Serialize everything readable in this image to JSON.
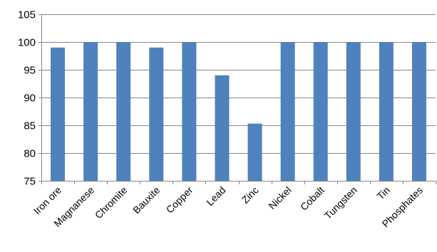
{
  "chart_data": {
    "type": "bar",
    "title": "",
    "xlabel": "",
    "ylabel": "",
    "categories": [
      "Iron ore",
      "Magnanese",
      "Chromite",
      "Bauxite",
      "Copper",
      "Lead",
      "Zinc",
      "Nickel",
      "Cobalt",
      "Tungsten",
      "Tin",
      "Phosphates"
    ],
    "values": [
      99,
      100,
      100,
      99,
      100,
      94,
      85.3,
      100,
      100,
      100,
      100,
      100
    ],
    "ylim": [
      75,
      105
    ],
    "yticks": [
      75,
      80,
      85,
      90,
      95,
      100,
      105
    ],
    "grid": true,
    "legend": "none",
    "bar_color": "#4f81bd",
    "grid_color": "#868686"
  }
}
